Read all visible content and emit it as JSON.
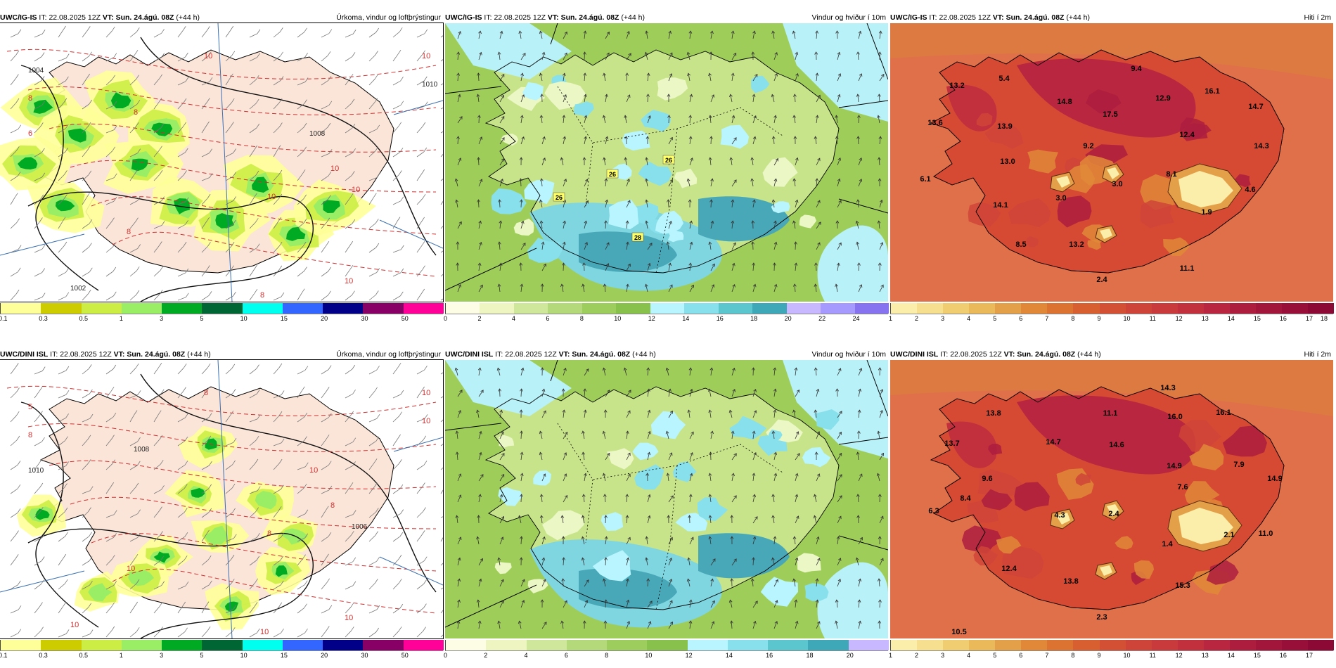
{
  "rows": [
    {
      "model": "UWC/IG-IS",
      "panels": [
        {
          "it_label": "IT:",
          "it": "22.08.2025 12Z",
          "vt_label": "VT:",
          "vt": "Sun. 24.ágú. 08Z",
          "lead": "(+44 h)",
          "desc": "Úrkoma, vindur og loftþrýstingur",
          "contours": [
            "1004",
            "1008",
            "1010",
            "1002",
            "10",
            "10",
            "8",
            "8",
            "10",
            "6",
            "8",
            "10",
            "10",
            "8",
            "10"
          ],
          "ticks": [
            "0.1",
            "0.3",
            "0.5",
            "1",
            "3",
            "5",
            "10",
            "15",
            "20",
            "30",
            "50"
          ]
        },
        {
          "it_label": "IT:",
          "it": "22.08.2025 12Z",
          "vt_label": "VT:",
          "vt": "Sun. 24.ágú. 08Z",
          "lead": "(+44 h)",
          "desc": "Vindur og hviður í 10m",
          "gusts": [
            "26",
            "26",
            "26",
            "28"
          ],
          "ticks": [
            "0",
            "2",
            "4",
            "6",
            "8",
            "10",
            "12",
            "14",
            "16",
            "18",
            "20",
            "22",
            "24"
          ]
        },
        {
          "it_label": "IT:",
          "it": "22.08.2025 12Z",
          "vt_label": "VT:",
          "vt": "Sun. 24.ágú. 08Z",
          "lead": "(+44 h)",
          "desc": "Hiti í 2m",
          "temps": [
            "13.2",
            "5.4",
            "9.4",
            "16.1",
            "14.8",
            "12.9",
            "14.7",
            "13.6",
            "13.9",
            "17.5",
            "12.4",
            "9.2",
            "14.3",
            "13.0",
            "8.1",
            "6.1",
            "3.0",
            "3.0",
            "4.6",
            "14.1",
            "1.9",
            "8.5",
            "13.2",
            "2.4",
            "11.1"
          ],
          "ticks": [
            "1",
            "2",
            "3",
            "4",
            "5",
            "6",
            "7",
            "8",
            "9",
            "10",
            "11",
            "12",
            "13",
            "14",
            "15",
            "16",
            "17",
            "18"
          ]
        }
      ]
    },
    {
      "model": "UWC/DINI ISL",
      "panels": [
        {
          "it_label": "IT:",
          "it": "22.08.2025 12Z",
          "vt_label": "VT:",
          "vt": "Sun. 24.ágú. 08Z",
          "lead": "(+44 h)",
          "desc": "Úrkoma, vindur og loftþrýstingur",
          "contours": [
            "5",
            "10",
            "10",
            "10",
            "8",
            "10",
            "8",
            "1008",
            "1006",
            "1010",
            "10",
            "8",
            "10",
            "10",
            "8"
          ],
          "ticks": [
            "0.1",
            "0.3",
            "0.5",
            "1",
            "3",
            "5",
            "10",
            "15",
            "20",
            "30",
            "50"
          ]
        },
        {
          "it_label": "IT:",
          "it": "22.08.2025 12Z",
          "vt_label": "VT:",
          "vt": "Sun. 24.ágú. 08Z",
          "lead": "(+44 h)",
          "desc": "Vindur og hviður í 10m",
          "gusts": [],
          "ticks": [
            "0",
            "2",
            "4",
            "6",
            "8",
            "10",
            "12",
            "14",
            "16",
            "18",
            "20"
          ]
        },
        {
          "it_label": "IT:",
          "it": "22.08.2025 12Z",
          "vt_label": "VT:",
          "vt": "Sun. 24.ágú. 08Z",
          "lead": "(+44 h)",
          "desc": "Hiti í 2m",
          "temps": [
            "14.3",
            "13.8",
            "11.1",
            "16.0",
            "16.1",
            "13.7",
            "14.7",
            "14.6",
            "14.9",
            "7.9",
            "9.6",
            "14.9",
            "8.4",
            "7.6",
            "6.3",
            "4.3",
            "2.4",
            "2.1",
            "11.0",
            "1.4",
            "12.4",
            "13.8",
            "15.3",
            "2.3",
            "10.5"
          ],
          "ticks": [
            "1",
            "2",
            "3",
            "4",
            "5",
            "6",
            "7",
            "8",
            "9",
            "10",
            "11",
            "12",
            "13",
            "14",
            "15",
            "16",
            "17"
          ]
        }
      ]
    }
  ],
  "colorbars": {
    "precip": [
      "#ffff99",
      "#cccc00",
      "#ccee44",
      "#99ee66",
      "#00aa22",
      "#006633",
      "#00ffee",
      "#3366ff",
      "#000088",
      "#880066",
      "#ff0099",
      "#ff0000"
    ],
    "wind": [
      "#fdfde6",
      "#eef5c0",
      "#cfe79a",
      "#b4d97a",
      "#9ccd5d",
      "#88c24c",
      "#b8f5ff",
      "#88e0ec",
      "#5cc6cf",
      "#3ea8b8",
      "#c8b8ff",
      "#a79aff",
      "#8772f0",
      "#6050c8",
      "#ffaaaa"
    ],
    "temp": [
      "#faeeaa",
      "#f6df8e",
      "#f0cd70",
      "#eab95a",
      "#e4a048",
      "#e08838",
      "#dd7330",
      "#d86030",
      "#d45035",
      "#cf4438",
      "#c93a3c",
      "#c2303d",
      "#b8263f",
      "#ad1d3e",
      "#a3163c",
      "#980f39",
      "#8c0936"
    ]
  }
}
